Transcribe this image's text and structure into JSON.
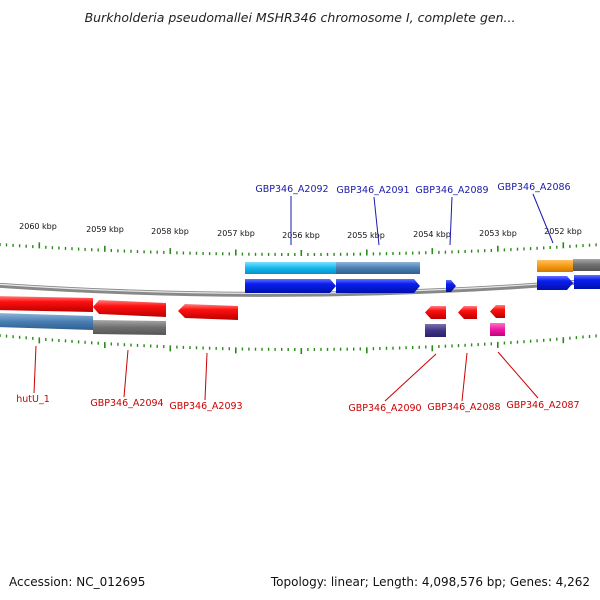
{
  "title": "Burkholderia pseudomallei MSHR346 chromosome I, complete gen...",
  "footer": {
    "accession": "Accession: NC_012695",
    "summary": "Topology: linear; Length: 4,098,576 bp; Genes: 4,262"
  },
  "scale_labels": [
    "2060 kbp",
    "2059 kbp",
    "2058 kbp",
    "2057 kbp",
    "2056 kbp",
    "2055 kbp",
    "2054 kbp",
    "2053 kbp",
    "2052 kbp"
  ],
  "colors": {
    "forward_gene": "#0a1ef0",
    "reverse_gene": "#ee0000",
    "forward_label": "#1a1aaa",
    "reverse_label": "#cc0000",
    "tick": "#2a8a1a",
    "backbone": "#888888"
  },
  "top_labels": [
    {
      "id": "a2092",
      "text": "GBP346_A2092"
    },
    {
      "id": "a2091",
      "text": "GBP346_A2091"
    },
    {
      "id": "a2089",
      "text": "GBP346_A2089"
    },
    {
      "id": "a2086",
      "text": "GBP346_A2086"
    }
  ],
  "bottom_labels": [
    {
      "id": "hutU",
      "text": "hutU_1"
    },
    {
      "id": "a2094",
      "text": "GBP346_A2094"
    },
    {
      "id": "a2093",
      "text": "GBP346_A2093"
    },
    {
      "id": "a2090",
      "text": "GBP346_A2090"
    },
    {
      "id": "a2088",
      "text": "GBP346_A2088"
    },
    {
      "id": "a2087",
      "text": "GBP346_A2087"
    }
  ]
}
